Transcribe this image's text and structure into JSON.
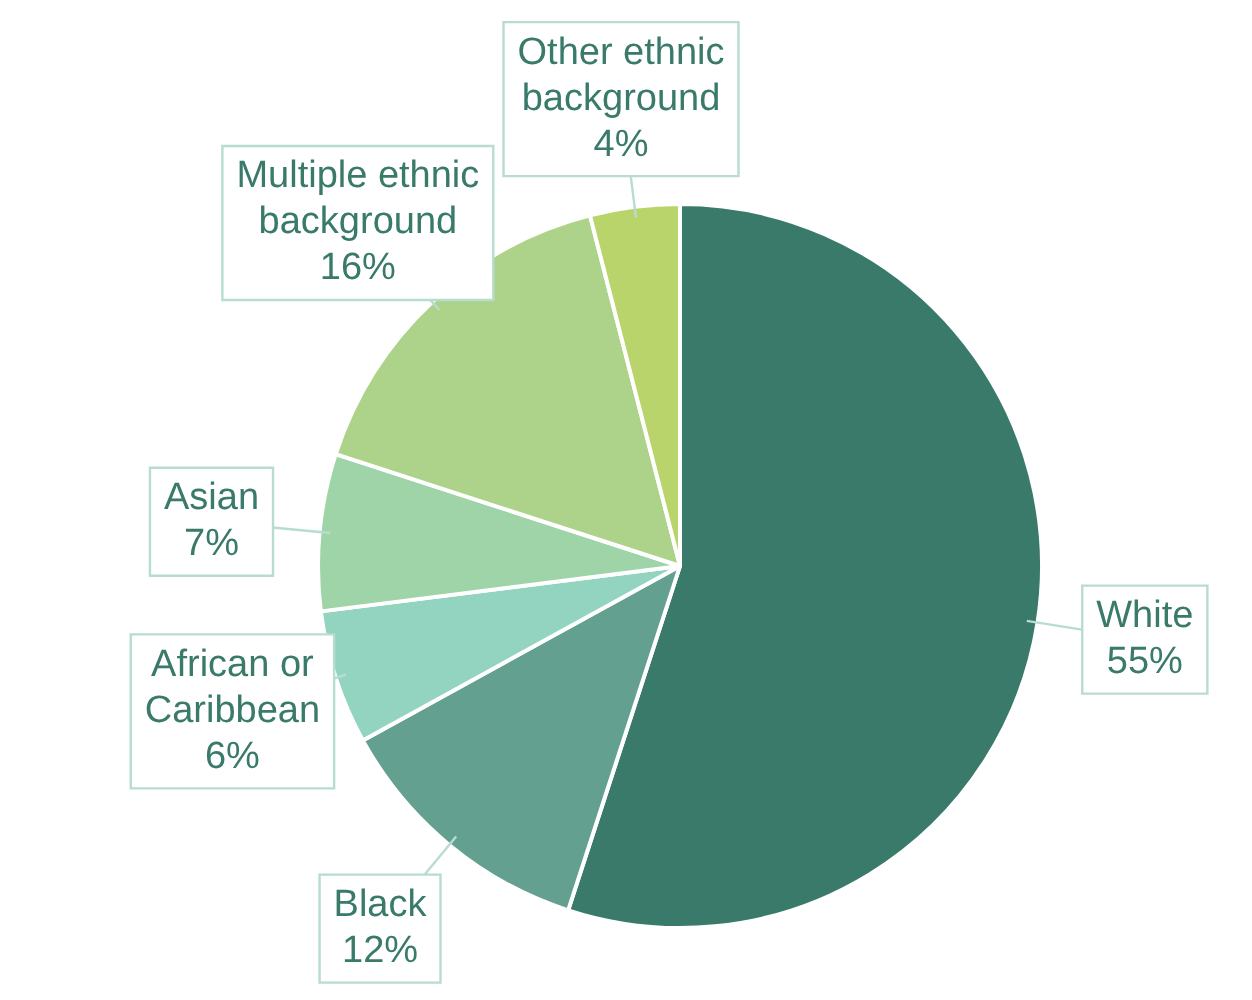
{
  "chart_data": {
    "type": "pie",
    "categories": [
      "White",
      "Black",
      "African or Caribbean",
      "Asian",
      "Multiple ethnic background",
      "Other ethnic background"
    ],
    "values": [
      55,
      12,
      6,
      7,
      16,
      4
    ],
    "colors": [
      "#3a7a6a",
      "#64a08f",
      "#92d4bf",
      "#9ed4a8",
      "#add38a",
      "#b8d46a"
    ],
    "value_labels": [
      "55%",
      "12%",
      "6%",
      "7%",
      "16%",
      "4%"
    ],
    "legend": false
  }
}
